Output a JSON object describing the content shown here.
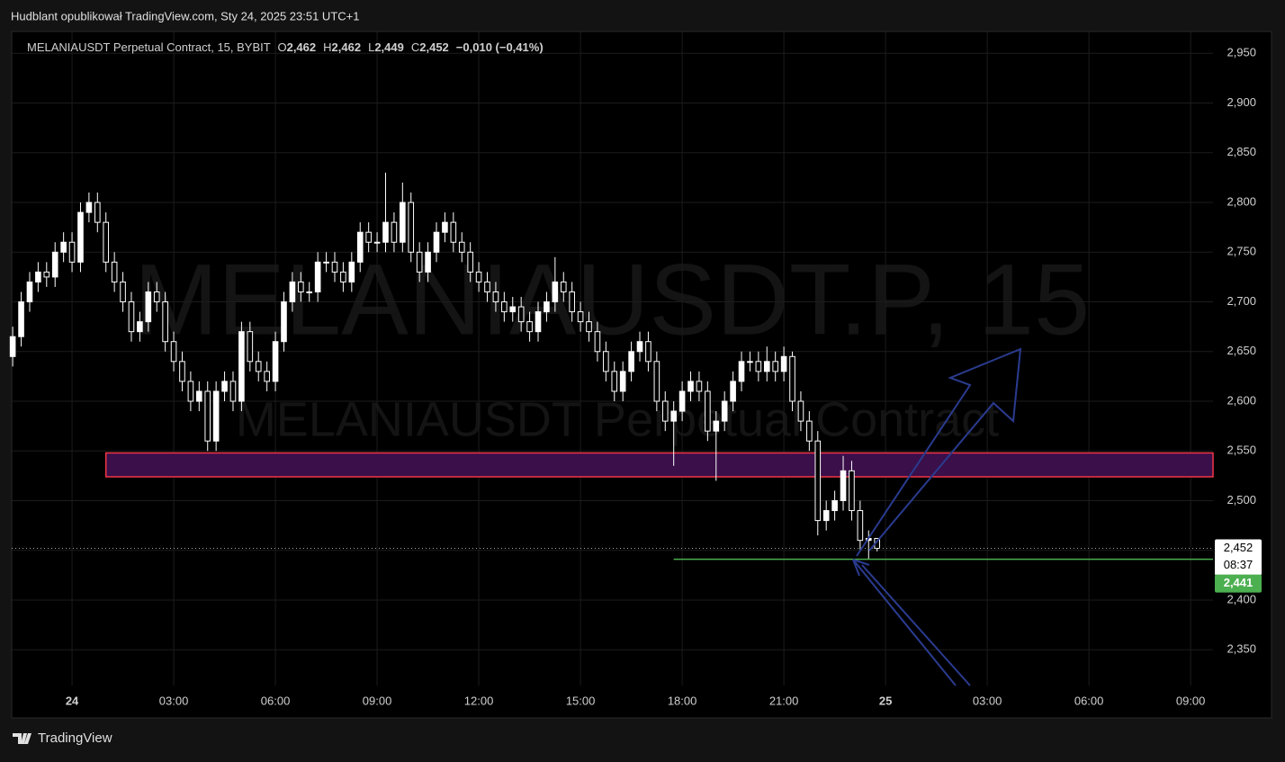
{
  "header": {
    "text": "Hudblant opublikował TradingView.com, Sty 24, 2025 23:51 UTC+1"
  },
  "footer": {
    "brand": "TradingView"
  },
  "chart_data": {
    "type": "candlestick",
    "symbol": "MELANIAUSDT Perpetual Contract, 15, BYBIT",
    "legend_values": {
      "o_key": "O",
      "open": "2,462",
      "h_key": "H",
      "high": "2,462",
      "l_key": "L",
      "low": "2,449",
      "c_key": "C",
      "close": "2,452",
      "change": "−0,010 (−0,41%)"
    },
    "watermark": [
      "MELANIAUSDT.P, 15",
      "MELANIAUSDT Perpetual Contract"
    ],
    "xlim": [
      -1.78,
      33.66
    ],
    "xticks": [
      {
        "value": 0,
        "label": "24"
      },
      {
        "value": 3,
        "label": "03:00"
      },
      {
        "value": 6,
        "label": "06:00"
      },
      {
        "value": 9,
        "label": "09:00"
      },
      {
        "value": 12,
        "label": "12:00"
      },
      {
        "value": 15,
        "label": "15:00"
      },
      {
        "value": 18,
        "label": "18:00"
      },
      {
        "value": 21,
        "label": "21:00"
      },
      {
        "value": 24,
        "label": "25"
      },
      {
        "value": 27,
        "label": "03:00"
      },
      {
        "value": 30,
        "label": "06:00"
      },
      {
        "value": 33,
        "label": "09:00"
      }
    ],
    "ylim": [
      2.314,
      2.972
    ],
    "yticks": [
      {
        "value": 2.35,
        "label": "2,350"
      },
      {
        "value": 2.4,
        "label": "2,400"
      },
      {
        "value": 2.45,
        "label": "2,450"
      },
      {
        "value": 2.5,
        "label": "2,500"
      },
      {
        "value": 2.55,
        "label": "2,550"
      },
      {
        "value": 2.6,
        "label": "2,600"
      },
      {
        "value": 2.65,
        "label": "2,650"
      },
      {
        "value": 2.7,
        "label": "2,700"
      },
      {
        "value": 2.75,
        "label": "2,750"
      },
      {
        "value": 2.8,
        "label": "2,800"
      },
      {
        "value": 2.85,
        "label": "2,850"
      },
      {
        "value": 2.9,
        "label": "2,900"
      },
      {
        "value": 2.95,
        "label": "2,950"
      }
    ],
    "grid": true,
    "color_up": "#ffffff",
    "color_down": "#ffffff",
    "x": [
      -1.75,
      -1.5,
      -1.25,
      -1,
      -0.75,
      -0.5,
      -0.25,
      0,
      0.25,
      0.5,
      0.75,
      1,
      1.25,
      1.5,
      1.75,
      2,
      2.25,
      2.5,
      2.75,
      3,
      3.25,
      3.5,
      3.75,
      4,
      4.25,
      4.5,
      4.75,
      5,
      5.25,
      5.5,
      5.75,
      6,
      6.25,
      6.5,
      6.75,
      7,
      7.25,
      7.5,
      7.75,
      8,
      8.25,
      8.5,
      8.75,
      9,
      9.25,
      9.5,
      9.75,
      10,
      10.25,
      10.5,
      10.75,
      11,
      11.25,
      11.5,
      11.75,
      12,
      12.25,
      12.5,
      12.75,
      13,
      13.25,
      13.5,
      13.75,
      14,
      14.25,
      14.5,
      14.75,
      15,
      15.25,
      15.5,
      15.75,
      16,
      16.25,
      16.5,
      16.75,
      17,
      17.25,
      17.5,
      17.75,
      18,
      18.25,
      18.5,
      18.75,
      19,
      19.25,
      19.5,
      19.75,
      20,
      20.25,
      20.5,
      20.75,
      21,
      21.25,
      21.5,
      21.75,
      22,
      22.25,
      22.5,
      22.75,
      23,
      23.25,
      23.5,
      23.75
    ],
    "open": [
      2.645,
      2.665,
      2.7,
      2.72,
      2.73,
      2.725,
      2.75,
      2.76,
      2.74,
      2.79,
      2.8,
      2.78,
      2.74,
      2.72,
      2.7,
      2.67,
      2.68,
      2.71,
      2.7,
      2.66,
      2.64,
      2.62,
      2.6,
      2.61,
      2.56,
      2.61,
      2.62,
      2.6,
      2.67,
      2.64,
      2.63,
      2.62,
      2.66,
      2.7,
      2.72,
      2.71,
      2.71,
      2.74,
      2.74,
      2.73,
      2.72,
      2.74,
      2.77,
      2.76,
      2.76,
      2.78,
      2.76,
      2.8,
      2.75,
      2.73,
      2.75,
      2.77,
      2.78,
      2.76,
      2.75,
      2.73,
      2.72,
      2.71,
      2.7,
      2.69,
      2.695,
      2.68,
      2.67,
      2.69,
      2.7,
      2.72,
      2.71,
      2.69,
      2.68,
      2.67,
      2.65,
      2.63,
      2.61,
      2.63,
      2.65,
      2.66,
      2.64,
      2.6,
      2.58,
      2.59,
      2.61,
      2.62,
      2.61,
      2.57,
      2.58,
      2.6,
      2.62,
      2.64,
      2.64,
      2.63,
      2.64,
      2.63,
      2.645,
      2.6,
      2.58,
      2.56,
      2.48,
      2.49,
      2.5,
      2.53,
      2.49,
      2.46,
      2.462
    ],
    "high": [
      2.675,
      2.71,
      2.73,
      2.74,
      2.74,
      2.76,
      2.77,
      2.77,
      2.8,
      2.81,
      2.81,
      2.79,
      2.75,
      2.73,
      2.71,
      2.69,
      2.72,
      2.72,
      2.71,
      2.67,
      2.65,
      2.63,
      2.62,
      2.62,
      2.62,
      2.63,
      2.63,
      2.68,
      2.68,
      2.65,
      2.64,
      2.67,
      2.71,
      2.73,
      2.73,
      2.72,
      2.75,
      2.75,
      2.75,
      2.74,
      2.75,
      2.78,
      2.78,
      2.77,
      2.83,
      2.79,
      2.82,
      2.81,
      2.76,
      2.76,
      2.78,
      2.79,
      2.79,
      2.77,
      2.76,
      2.74,
      2.73,
      2.72,
      2.71,
      2.705,
      2.705,
      2.69,
      2.7,
      2.71,
      2.745,
      2.73,
      2.72,
      2.7,
      2.69,
      2.68,
      2.66,
      2.64,
      2.64,
      2.66,
      2.67,
      2.67,
      2.65,
      2.61,
      2.6,
      2.62,
      2.63,
      2.63,
      2.62,
      2.59,
      2.61,
      2.63,
      2.65,
      2.65,
      2.65,
      2.655,
      2.65,
      2.655,
      2.65,
      2.61,
      2.59,
      2.57,
      2.5,
      2.51,
      2.545,
      2.54,
      2.5,
      2.47,
      2.462
    ],
    "low": [
      2.635,
      2.655,
      2.69,
      2.71,
      2.715,
      2.715,
      2.74,
      2.73,
      2.73,
      2.78,
      2.77,
      2.73,
      2.71,
      2.69,
      2.66,
      2.66,
      2.67,
      2.69,
      2.65,
      2.63,
      2.61,
      2.59,
      2.59,
      2.55,
      2.55,
      2.6,
      2.59,
      2.59,
      2.63,
      2.62,
      2.61,
      2.61,
      2.65,
      2.69,
      2.7,
      2.7,
      2.7,
      2.73,
      2.72,
      2.71,
      2.71,
      2.73,
      2.75,
      2.75,
      2.75,
      2.75,
      2.75,
      2.74,
      2.72,
      2.72,
      2.74,
      2.76,
      2.75,
      2.74,
      2.72,
      2.71,
      2.7,
      2.69,
      2.68,
      2.68,
      2.67,
      2.66,
      2.66,
      2.68,
      2.69,
      2.7,
      2.68,
      2.67,
      2.66,
      2.64,
      2.62,
      2.6,
      2.6,
      2.62,
      2.64,
      2.63,
      2.59,
      2.57,
      2.535,
      2.58,
      2.6,
      2.6,
      2.56,
      2.52,
      2.57,
      2.59,
      2.61,
      2.63,
      2.62,
      2.62,
      2.62,
      2.62,
      2.59,
      2.57,
      2.55,
      2.465,
      2.47,
      2.48,
      2.49,
      2.48,
      2.45,
      2.441,
      2.449
    ],
    "close": [
      2.665,
      2.7,
      2.72,
      2.73,
      2.725,
      2.75,
      2.76,
      2.74,
      2.79,
      2.8,
      2.78,
      2.74,
      2.72,
      2.7,
      2.67,
      2.68,
      2.71,
      2.7,
      2.66,
      2.64,
      2.62,
      2.6,
      2.61,
      2.56,
      2.61,
      2.62,
      2.6,
      2.67,
      2.64,
      2.63,
      2.62,
      2.66,
      2.7,
      2.72,
      2.71,
      2.71,
      2.74,
      2.74,
      2.73,
      2.72,
      2.74,
      2.77,
      2.76,
      2.76,
      2.78,
      2.76,
      2.8,
      2.75,
      2.73,
      2.75,
      2.77,
      2.78,
      2.76,
      2.75,
      2.73,
      2.72,
      2.71,
      2.7,
      2.69,
      2.695,
      2.68,
      2.67,
      2.69,
      2.7,
      2.72,
      2.71,
      2.69,
      2.68,
      2.67,
      2.65,
      2.63,
      2.61,
      2.63,
      2.65,
      2.66,
      2.64,
      2.6,
      2.58,
      2.59,
      2.61,
      2.62,
      2.61,
      2.57,
      2.58,
      2.6,
      2.62,
      2.64,
      2.64,
      2.63,
      2.64,
      2.63,
      2.645,
      2.6,
      2.58,
      2.56,
      2.48,
      2.49,
      2.5,
      2.53,
      2.49,
      2.46,
      2.462,
      2.452
    ],
    "zone": {
      "top": 2.548,
      "bottom": 2.524,
      "start": 1.0,
      "color": "#f23645"
    },
    "last_price": {
      "value": 2.452,
      "label": "2,452",
      "countdown": "08:37"
    },
    "level": {
      "value": 2.441,
      "label": "2,441",
      "start": 17.75,
      "color": "#4caf50"
    }
  }
}
